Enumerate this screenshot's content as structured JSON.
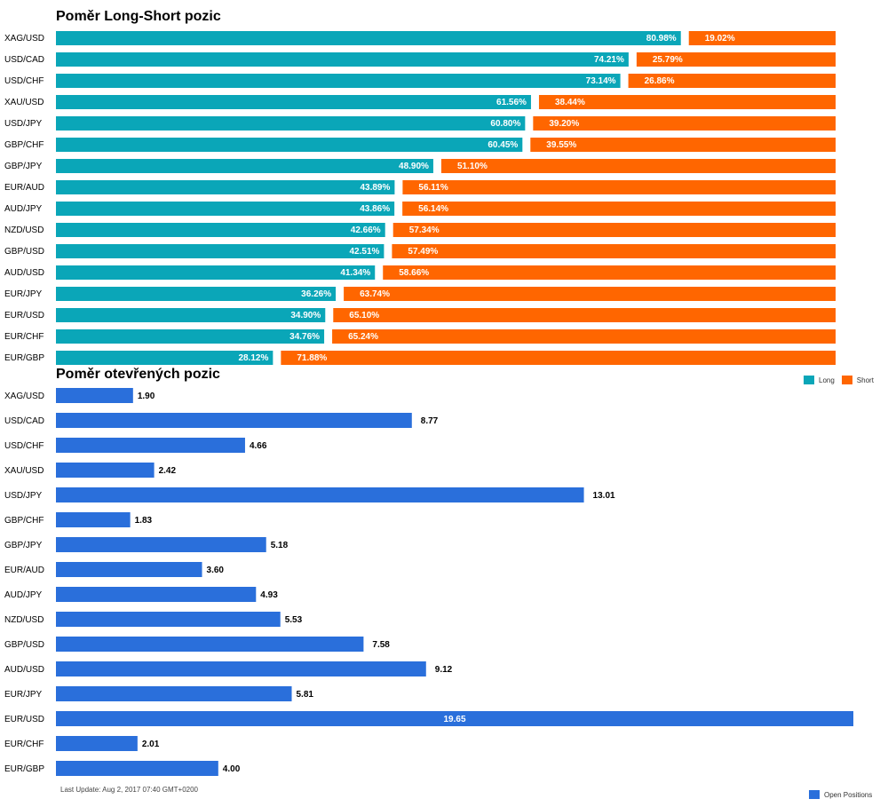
{
  "chart_data": [
    {
      "type": "bar",
      "orientation": "horizontal",
      "stacked_percent": true,
      "title": "Poměr Long-Short pozic",
      "categories": [
        "XAG/USD",
        "USD/CAD",
        "USD/CHF",
        "XAU/USD",
        "USD/JPY",
        "GBP/CHF",
        "GBP/JPY",
        "EUR/AUD",
        "AUD/JPY",
        "NZD/USD",
        "GBP/USD",
        "AUD/USD",
        "EUR/JPY",
        "EUR/USD",
        "EUR/CHF",
        "EUR/GBP"
      ],
      "series": [
        {
          "name": "Long",
          "color": "#0aa6b8",
          "values": [
            80.98,
            74.21,
            73.14,
            61.56,
            60.8,
            60.45,
            48.9,
            43.89,
            43.86,
            42.66,
            42.51,
            41.34,
            36.26,
            34.9,
            34.76,
            28.12
          ],
          "labels": [
            "80.98%",
            "74.21%",
            "73.14%",
            "61.56%",
            "60.80%",
            "60.45%",
            "48.90%",
            "43.89%",
            "43.86%",
            "42.66%",
            "42.51%",
            "41.34%",
            "36.26%",
            "34.90%",
            "34.76%",
            "28.12%"
          ]
        },
        {
          "name": "Short",
          "color": "#ff6600",
          "values": [
            19.02,
            25.79,
            26.86,
            38.44,
            39.2,
            39.55,
            51.1,
            56.11,
            56.14,
            57.34,
            57.49,
            58.66,
            63.74,
            65.1,
            65.24,
            71.88
          ],
          "labels": [
            "19.02%",
            "25.79%",
            "26.86%",
            "38.44%",
            "39.20%",
            "39.55%",
            "51.10%",
            "56.11%",
            "56.14%",
            "57.34%",
            "57.49%",
            "58.66%",
            "63.74%",
            "65.10%",
            "65.24%",
            "71.88%"
          ]
        }
      ],
      "legend_position": "bottom-right"
    },
    {
      "type": "bar",
      "orientation": "horizontal",
      "title": "Poměr otevřených pozic",
      "categories": [
        "XAG/USD",
        "USD/CAD",
        "USD/CHF",
        "XAU/USD",
        "USD/JPY",
        "GBP/CHF",
        "GBP/JPY",
        "EUR/AUD",
        "AUD/JPY",
        "NZD/USD",
        "GBP/USD",
        "AUD/USD",
        "EUR/JPY",
        "EUR/USD",
        "EUR/CHF",
        "EUR/GBP"
      ],
      "series": [
        {
          "name": "Open Positions",
          "color": "#2a6fdb",
          "values": [
            1.9,
            8.77,
            4.66,
            2.42,
            13.01,
            1.83,
            5.18,
            3.6,
            4.93,
            5.53,
            7.58,
            9.12,
            5.81,
            19.65,
            2.01,
            4.0
          ],
          "labels": [
            "1.90",
            "8.77",
            "4.66",
            "2.42",
            "13.01",
            "1.83",
            "5.18",
            "3.60",
            "4.93",
            "5.53",
            "7.58",
            "9.12",
            "5.81",
            "19.65",
            "2.01",
            "4.00"
          ]
        }
      ],
      "legend_position": "bottom-right"
    }
  ],
  "footer": "Last Update: Aug 2, 2017 07:40 GMT+0200",
  "legend1": {
    "long": "Long",
    "short": "Short"
  },
  "legend2": {
    "open": "Open Positions"
  },
  "colors": {
    "long": "#0aa6b8",
    "short": "#ff6600",
    "open": "#2a6fdb"
  }
}
